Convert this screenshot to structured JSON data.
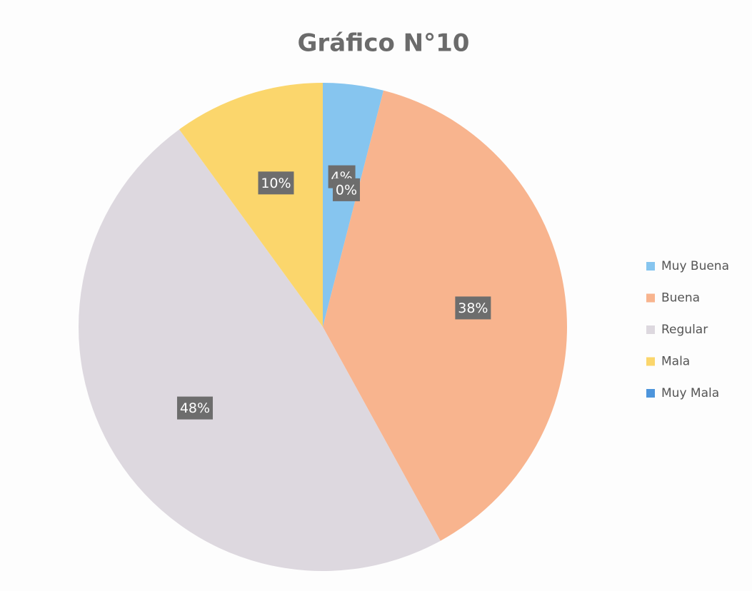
{
  "chart_data": {
    "type": "pie",
    "title": "Gráfico N°10",
    "categories": [
      "Muy Buena",
      "Buena",
      "Regular",
      "Mala",
      "Muy Mala"
    ],
    "values": [
      4,
      38,
      48,
      10,
      0
    ],
    "value_labels": [
      "4%",
      "38%",
      "48%",
      "10%",
      "0%"
    ],
    "colors": [
      "#86c5ef",
      "#f8b48e",
      "#ddd8df",
      "#fbd66c",
      "#4d95dc"
    ],
    "legend": "right"
  }
}
